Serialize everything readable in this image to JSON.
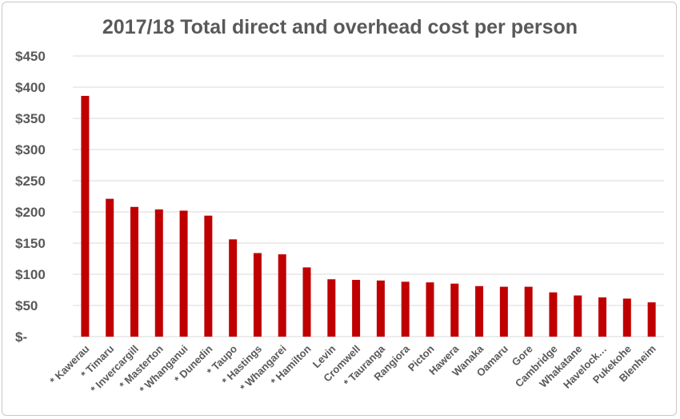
{
  "chart_data": {
    "type": "bar",
    "title": "2017/18 Total direct and overhead cost per person",
    "xlabel": "",
    "ylabel": "",
    "ylim": [
      0,
      450
    ],
    "yticks": [
      0,
      50,
      100,
      150,
      200,
      250,
      300,
      350,
      400,
      450
    ],
    "ytick_labels": [
      "$-",
      "$50",
      "$100",
      "$150",
      "$200",
      "$250",
      "$300",
      "$350",
      "$400",
      "$450"
    ],
    "grid": true,
    "legend": "none",
    "bar_color": "#C00000",
    "categories": [
      "* Kawerau",
      "* Timaru",
      "* Invercargill",
      "* Masterton",
      "* Whanganui",
      "* Dunedin",
      "* Taupo",
      "* Hastings",
      "* Whangarei",
      "* Hamilton",
      "Levin",
      "Cromwell",
      "* Tauranga",
      "Rangiora",
      "Picton",
      "Hawera",
      "Wanaka",
      "Oamaru",
      "Gore",
      "Cambridge",
      "Whakatane",
      "Havelock…",
      "Pukekohe",
      "Blenheim"
    ],
    "values": [
      386,
      221,
      208,
      204,
      202,
      194,
      156,
      134,
      132,
      111,
      92,
      91,
      90,
      88,
      87,
      85,
      81,
      80,
      80,
      71,
      66,
      63,
      61,
      55
    ]
  }
}
